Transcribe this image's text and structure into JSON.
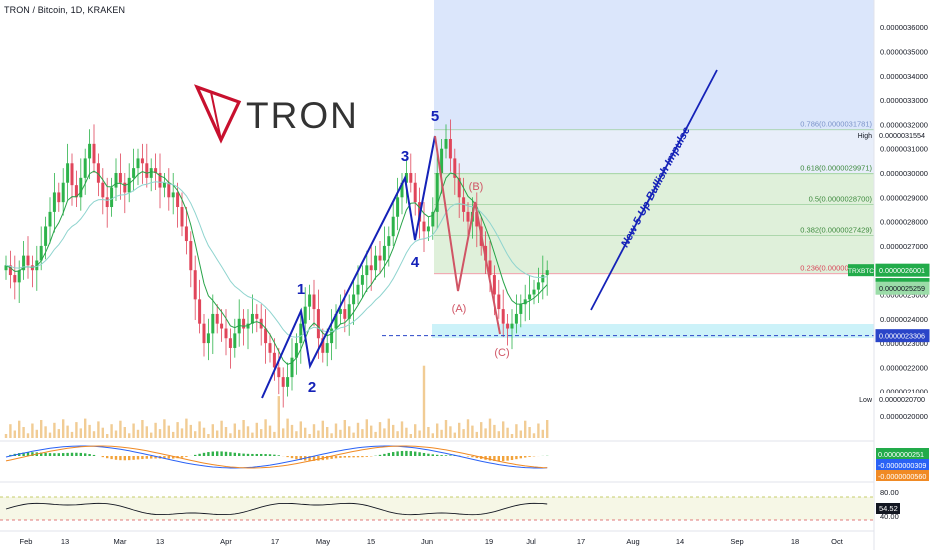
{
  "header": {
    "title": "TRON / Bitcoin, 1D, KRAKEN"
  },
  "logo": {
    "text": "TRON",
    "color": "#c8102e"
  },
  "colors": {
    "up": "#2db34b",
    "down": "#e0455a",
    "wave": "#1522b8",
    "corr": "#d05565",
    "fib_bg": "#dff0da",
    "fib_bg_top": "#e8eefa",
    "blue_zone": "#dbe6fb",
    "support": "#2a45c8",
    "ema_fast": "#27a348",
    "ema_slow": "#8fd4cf",
    "macd": "#2a62f5",
    "signal": "#f08a24",
    "rsi": "#131722",
    "volume": "#e6a23c"
  },
  "chart_data": {
    "type": "candlestick",
    "symbol": "TRXBTC",
    "price_axis": {
      "ticks": [
        "0.0000020000",
        "0.0000021000",
        "0.0000022000",
        "0.0000023000",
        "0.0000024000",
        "0.0000025000",
        "0.0000026000",
        "0.0000027000",
        "0.0000028000",
        "0.0000029000",
        "0.0000030000",
        "0.0000031000",
        "0.0000032000",
        "0.0000033000",
        "0.0000034000",
        "0.0000035000",
        "0.0000036000",
        "0.0000037000"
      ],
      "ylim": [
        1.96e-06,
        3.7e-06
      ]
    },
    "x_axis": {
      "ticks": [
        "Feb",
        "13",
        "Mar",
        "13",
        "Apr",
        "17",
        "May",
        "15",
        "Jun",
        "19",
        "Jul",
        "17",
        "Aug",
        "14",
        "Sep",
        "18",
        "Oct"
      ]
    },
    "waves": [
      {
        "label": "1",
        "price": 2.52e-06
      },
      {
        "label": "2",
        "price": 2.22e-06
      },
      {
        "label": "3",
        "price": 3.02e-06
      },
      {
        "label": "4",
        "price": 2.73e-06
      },
      {
        "label": "5",
        "price": 3.17e-06
      }
    ],
    "correction": [
      {
        "label": "(A)",
        "price": 2.57e-06
      },
      {
        "label": "(B)",
        "price": 2.89e-06
      },
      {
        "label": "(C)",
        "price": 2.33e-06
      }
    ],
    "fib_levels": [
      {
        "label": "0.786(0.0000031781)",
        "price": 3.1781e-06
      },
      {
        "label": "0.618(0.0000029971)",
        "price": 2.9971e-06
      },
      {
        "label": "0.5(0.0000028700)",
        "price": 2.87e-06
      },
      {
        "label": "0.382(0.0000027429)",
        "price": 2.7429e-06
      },
      {
        "label": "0.236(0.0000025855)",
        "price": 2.5855e-06
      }
    ],
    "price_tags": [
      {
        "label": "High",
        "value": "0.0000031554",
        "price": 3.1554e-06,
        "bg": "#ffffff",
        "fg": "#131722"
      },
      {
        "label": "TRXBTC",
        "value": "0.0000026001",
        "price": 2.6001e-06,
        "bg": "#22ab4a",
        "fg": "#ffffff",
        "sub": "06:51:34"
      },
      {
        "label": "",
        "value": "0.0000025410",
        "price": 2.541e-06,
        "bg": "#22ab4a",
        "fg": "#ffffff"
      },
      {
        "label": "",
        "value": "0.0000025259",
        "price": 2.5259e-06,
        "bg": "#9bdca8",
        "fg": "#131722"
      },
      {
        "label": "",
        "value": "0.0000023306",
        "price": 2.3306e-06,
        "bg": "#2a45c8",
        "fg": "#ffffff"
      },
      {
        "label": "Low",
        "value": "0.0000020700",
        "price": 2.07e-06,
        "bg": "#ffffff",
        "fg": "#131722"
      }
    ],
    "support_price": 2.3306e-06,
    "projection_label": "New 5-Up Bullish Impulse",
    "macd": {
      "values": [
        "0.0000000251",
        "-0.0000000309",
        "-0.0000000560"
      ]
    },
    "rsi": {
      "ticks": [
        "80.00",
        "40.00"
      ],
      "value": "54.52"
    }
  }
}
